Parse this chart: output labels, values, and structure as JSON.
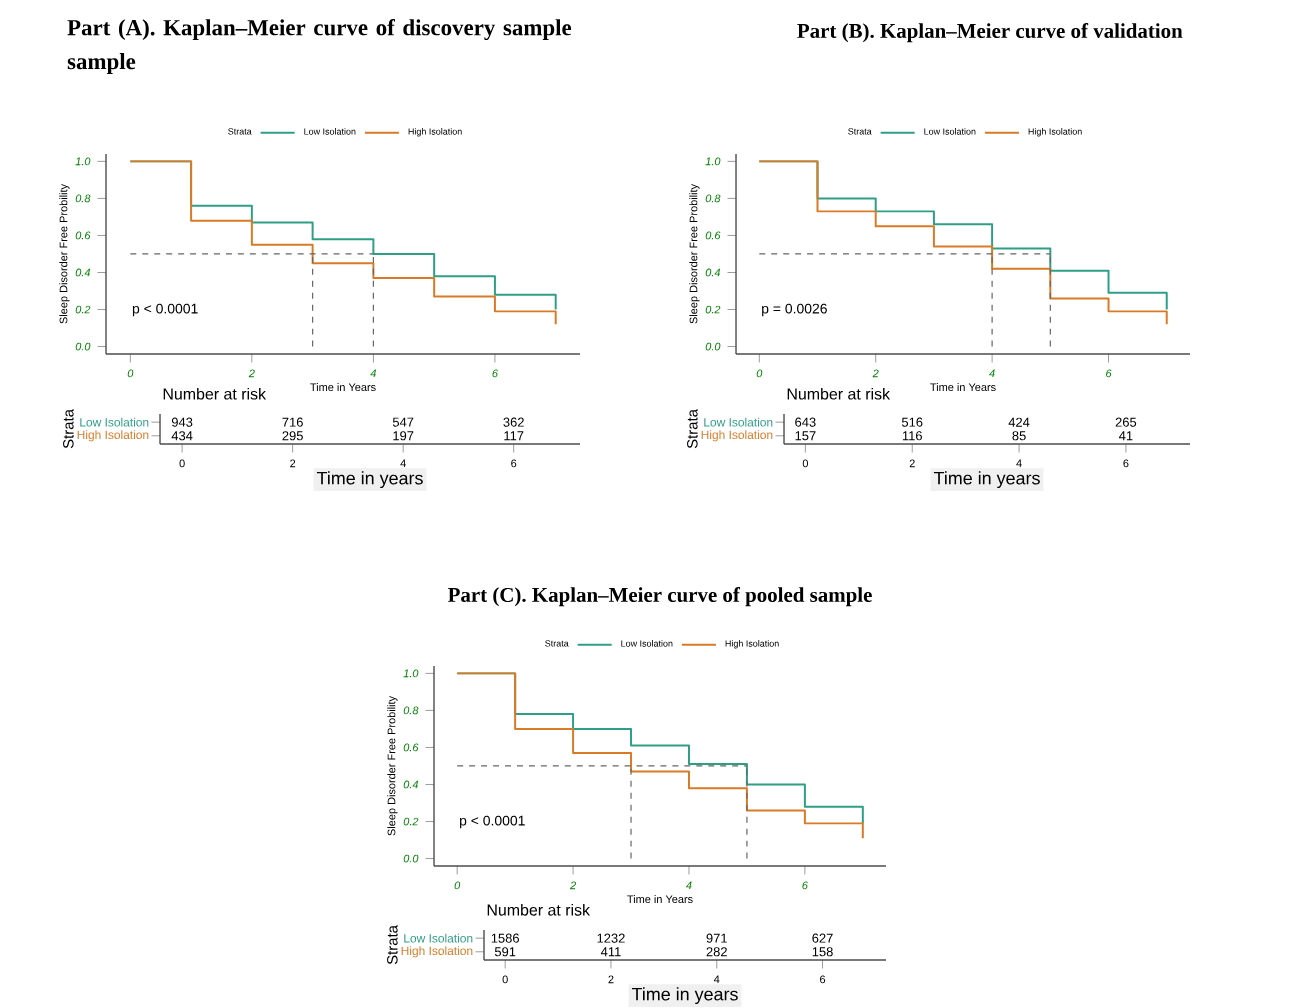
{
  "chart_data": [
    {
      "type": "step",
      "title": "Part (A). Kaplan–Meier curve of discovery sample sample",
      "xlabel": "Time in Years",
      "ylabel": "Sleep Disorder Free Probility",
      "legend_title": "Strata",
      "legend": "top",
      "x": [
        0,
        1,
        2,
        3,
        4,
        5,
        6,
        7
      ],
      "xlim": [
        -0.4,
        7.4
      ],
      "xticks": [
        0,
        2,
        4,
        6
      ],
      "ylim": [
        -0.04,
        1.04
      ],
      "yticks": [
        {
          "value": 0,
          "label": "0.0"
        },
        {
          "value": 0.2,
          "label": "0.2"
        },
        {
          "value": 0.4,
          "label": "0.4"
        },
        {
          "value": 0.6,
          "label": "0.6"
        },
        {
          "value": 0.8,
          "label": "0.8"
        },
        {
          "value": 1,
          "label": "1.0"
        }
      ],
      "series": [
        {
          "name": "Low Isolation",
          "color": "#2e9e86",
          "values": [
            1.0,
            0.76,
            0.67,
            0.58,
            0.5,
            0.38,
            0.28,
            0.2
          ]
        },
        {
          "name": "High Isolation",
          "color": "#d97a26",
          "values": [
            1.0,
            0.68,
            0.55,
            0.45,
            0.37,
            0.27,
            0.19,
            0.12
          ]
        }
      ],
      "ref_lines": [
        {
          "axis": "y",
          "value": 0.5,
          "color": "#666666",
          "line_style": "dashed"
        },
        {
          "axis": "x",
          "value": 3,
          "color": "#666666",
          "line_style": "dashed"
        },
        {
          "axis": "x",
          "value": 4,
          "color": "#666666",
          "line_style": "dashed"
        }
      ],
      "annotations": [
        "p < 0.0001"
      ]
    },
    {
      "type": "heatmap",
      "title": "Number at risk",
      "xlabel": "Time in years",
      "ylabel": "Strata",
      "categories": [
        "0",
        "2",
        "4",
        "6"
      ],
      "y_categories": [
        "Low Isolation",
        "High Isolation"
      ],
      "colors": [
        "#2e9e86",
        "#d97a26"
      ],
      "data_labels": true,
      "cells": [
        [
          943,
          716,
          547,
          362
        ],
        [
          434,
          295,
          197,
          117
        ]
      ]
    },
    {
      "type": "step",
      "title": "Part (B). Kaplan–Meier curve of validation",
      "xlabel": "Time in Years",
      "ylabel": "Sleep Disorder Free Probility",
      "legend_title": "Strata",
      "legend": "top",
      "x": [
        0,
        1,
        2,
        3,
        4,
        5,
        6,
        7
      ],
      "xlim": [
        -0.4,
        7.4
      ],
      "xticks": [
        0,
        2,
        4,
        6
      ],
      "ylim": [
        -0.04,
        1.04
      ],
      "yticks": [
        {
          "value": 0,
          "label": "0.0"
        },
        {
          "value": 0.2,
          "label": "0.2"
        },
        {
          "value": 0.4,
          "label": "0.4"
        },
        {
          "value": 0.6,
          "label": "0.6"
        },
        {
          "value": 0.8,
          "label": "0.8"
        },
        {
          "value": 1,
          "label": "1.0"
        }
      ],
      "series": [
        {
          "name": "Low Isolation",
          "color": "#2e9e86",
          "values": [
            1.0,
            0.8,
            0.73,
            0.66,
            0.53,
            0.41,
            0.29,
            0.2
          ]
        },
        {
          "name": "High Isolation",
          "color": "#d97a26",
          "values": [
            1.0,
            0.73,
            0.65,
            0.54,
            0.42,
            0.26,
            0.19,
            0.12
          ]
        }
      ],
      "ref_lines": [
        {
          "axis": "y",
          "value": 0.5,
          "color": "#666666",
          "line_style": "dashed"
        },
        {
          "axis": "x",
          "value": 4,
          "color": "#666666",
          "line_style": "dashed"
        },
        {
          "axis": "x",
          "value": 5,
          "color": "#666666",
          "line_style": "dashed"
        }
      ],
      "annotations": [
        "p = 0.0026"
      ]
    },
    {
      "type": "heatmap",
      "title": "Number at risk",
      "xlabel": "Time in years",
      "ylabel": "Strata",
      "categories": [
        "0",
        "2",
        "4",
        "6"
      ],
      "y_categories": [
        "Low Isolation",
        "High Isolation"
      ],
      "colors": [
        "#2e9e86",
        "#d97a26"
      ],
      "data_labels": true,
      "cells": [
        [
          643,
          516,
          424,
          265
        ],
        [
          157,
          116,
          85,
          41
        ]
      ]
    },
    {
      "type": "step",
      "title": "Part (C). Kaplan–Meier curve of pooled sample",
      "xlabel": "Time in Years",
      "ylabel": "Sleep Disorder Free Probility",
      "legend_title": "Strata",
      "legend": "top",
      "x": [
        0,
        1,
        2,
        3,
        4,
        5,
        6,
        7
      ],
      "xlim": [
        -0.4,
        7.4
      ],
      "xticks": [
        0,
        2,
        4,
        6
      ],
      "ylim": [
        -0.04,
        1.04
      ],
      "yticks": [
        {
          "value": 0,
          "label": "0.0"
        },
        {
          "value": 0.2,
          "label": "0.2"
        },
        {
          "value": 0.4,
          "label": "0.4"
        },
        {
          "value": 0.6,
          "label": "0.6"
        },
        {
          "value": 0.8,
          "label": "0.8"
        },
        {
          "value": 1,
          "label": "1.0"
        }
      ],
      "series": [
        {
          "name": "Low Isolation",
          "color": "#2e9e86",
          "values": [
            1.0,
            0.78,
            0.7,
            0.61,
            0.51,
            0.4,
            0.28,
            0.19
          ]
        },
        {
          "name": "High Isolation",
          "color": "#d97a26",
          "values": [
            1.0,
            0.7,
            0.57,
            0.47,
            0.38,
            0.26,
            0.19,
            0.11
          ]
        }
      ],
      "ref_lines": [
        {
          "axis": "y",
          "value": 0.5,
          "color": "#666666",
          "line_style": "dashed"
        },
        {
          "axis": "x",
          "value": 3,
          "color": "#666666",
          "line_style": "dashed"
        },
        {
          "axis": "x",
          "value": 5,
          "color": "#666666",
          "line_style": "dashed"
        }
      ],
      "annotations": [
        "p < 0.0001"
      ]
    },
    {
      "type": "heatmap",
      "title": "Number at risk",
      "xlabel": "Time in years",
      "ylabel": "Strata",
      "categories": [
        "0",
        "2",
        "4",
        "6"
      ],
      "y_categories": [
        "Low Isolation",
        "High Isolation"
      ],
      "colors": [
        "#2e9e86",
        "#d97a26"
      ],
      "data_labels": true,
      "cells": [
        [
          1586,
          1232,
          971,
          627
        ],
        [
          591,
          411,
          282,
          158
        ]
      ]
    }
  ]
}
